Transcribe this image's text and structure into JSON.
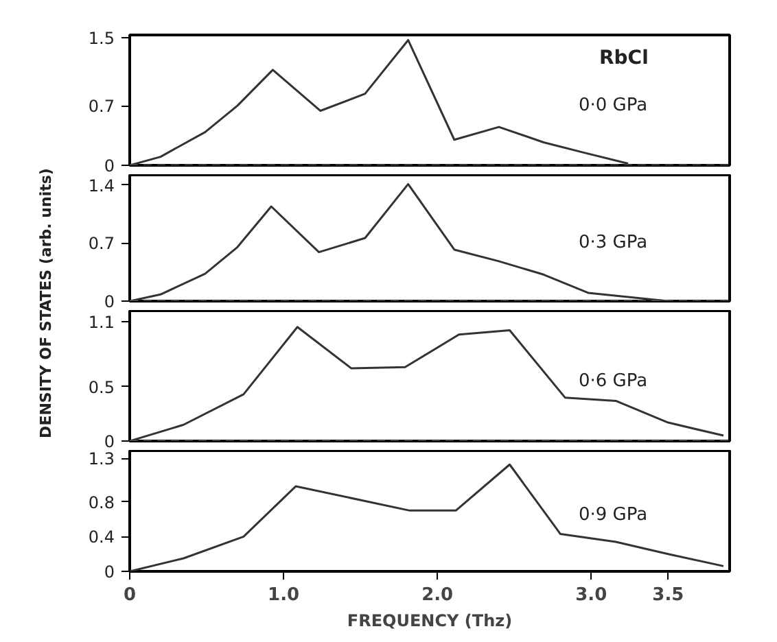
{
  "chart_data": [
    {
      "type": "line",
      "annotations": [
        "RbCl"
      ],
      "ylabel": "DENSITY OF STATES (arb. units)",
      "xlim": [
        0,
        3.9
      ],
      "ylim": [
        0,
        1.53
      ],
      "yticks": [
        0,
        0.7,
        1.5
      ],
      "tick_labels": "y",
      "grid": false,
      "line_style": "solid",
      "ref_lines": [
        {
          "axis": "y",
          "value": 0,
          "label": null,
          "line_style": "dashed",
          "color": "#555555"
        }
      ],
      "series": [
        {
          "name": "0·0 GPa",
          "color": "#333333",
          "x": [
            0,
            0.2,
            0.49,
            0.7,
            0.93,
            1.24,
            1.53,
            1.81,
            2.11,
            2.4,
            2.69,
            2.95,
            3.24
          ],
          "values": [
            0,
            0.1,
            0.39,
            0.7,
            1.12,
            0.64,
            0.84,
            1.47,
            0.3,
            0.45,
            0.27,
            0.15,
            0.02
          ]
        }
      ]
    },
    {
      "type": "line",
      "xlim": [
        0,
        3.9
      ],
      "ylim": [
        0,
        1.52
      ],
      "yticks": [
        0,
        0.7,
        1.4
      ],
      "tick_labels": "y",
      "grid": false,
      "line_style": "solid",
      "ref_lines": [
        {
          "axis": "y",
          "value": 0,
          "label": null,
          "line_style": "dashed",
          "color": "#555555"
        }
      ],
      "series": [
        {
          "name": "0·3 GPa",
          "color": "#333333",
          "x": [
            0,
            0.2,
            0.49,
            0.7,
            0.92,
            1.23,
            1.53,
            1.81,
            2.11,
            2.4,
            2.69,
            2.98,
            3.5
          ],
          "values": [
            0,
            0.08,
            0.33,
            0.65,
            1.14,
            0.59,
            0.76,
            1.41,
            0.62,
            0.48,
            0.32,
            0.1,
            0
          ]
        }
      ]
    },
    {
      "type": "line",
      "xlim": [
        0,
        3.9
      ],
      "ylim": [
        0,
        1.2
      ],
      "yticks": [
        0,
        0.5,
        1.1
      ],
      "tick_labels": "y",
      "grid": false,
      "line_style": "solid",
      "ref_lines": [
        {
          "axis": "y",
          "value": 0,
          "label": null,
          "line_style": "dashed",
          "color": "#555555"
        }
      ],
      "series": [
        {
          "name": "0·6 GPa",
          "color": "#333333",
          "x": [
            0,
            0.35,
            0.74,
            1.09,
            1.44,
            1.79,
            2.14,
            2.47,
            2.83,
            3.16,
            3.5,
            3.86
          ],
          "values": [
            0,
            0.15,
            0.43,
            1.05,
            0.67,
            0.68,
            0.98,
            1.02,
            0.4,
            0.37,
            0.17,
            0.05
          ]
        }
      ]
    },
    {
      "type": "line",
      "xlabel": "FREQUENCY (Thz)",
      "xlim": [
        0,
        3.9
      ],
      "ylim": [
        0,
        1.39
      ],
      "xticks": [
        0,
        {
          "value": 1,
          "label": "1.0"
        },
        {
          "value": 2,
          "label": "2.0"
        },
        {
          "value": 3,
          "label": "3.0"
        },
        3.5
      ],
      "yticks": [
        0,
        0.4,
        0.8,
        1.3
      ],
      "grid": false,
      "line_style": "solid",
      "series": [
        {
          "name": "0·9 GPa",
          "color": "#333333",
          "x": [
            0,
            0.35,
            0.74,
            1.08,
            1.82,
            2.12,
            2.47,
            2.8,
            3.16,
            3.5,
            3.86
          ],
          "values": [
            0,
            0.15,
            0.4,
            0.98,
            0.7,
            0.7,
            1.23,
            0.43,
            0.34,
            0.2,
            0.06
          ]
        }
      ]
    }
  ]
}
